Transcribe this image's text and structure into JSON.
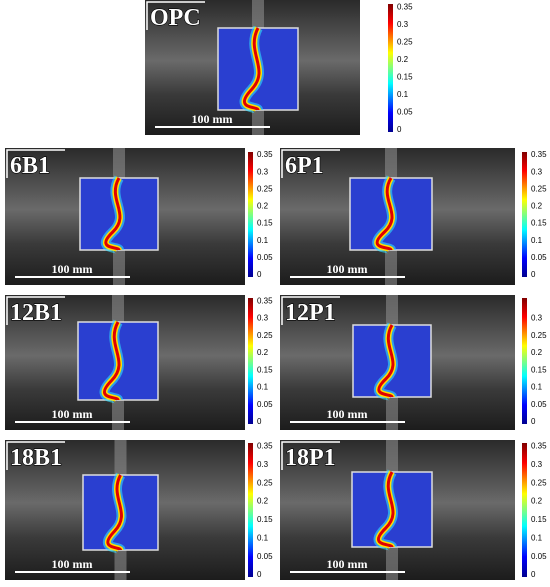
{
  "panels": [
    {
      "label": "OPC",
      "scale_bar": "100 mm",
      "colorbar_ticks": [
        0.35,
        0.3,
        0.25,
        0.2,
        0.15,
        0.1,
        0.05,
        0
      ]
    },
    {
      "label": "6B1",
      "scale_bar": "100 mm",
      "colorbar_ticks": [
        0.35,
        0.3,
        0.25,
        0.2,
        0.15,
        0.1,
        0.05,
        0
      ]
    },
    {
      "label": "6P1",
      "scale_bar": "100 mm",
      "colorbar_ticks": [
        0.35,
        0.3,
        0.25,
        0.2,
        0.15,
        0.1,
        0.05,
        0
      ]
    },
    {
      "label": "12B1",
      "scale_bar": "100 mm",
      "colorbar_ticks": [
        0.35,
        0.3,
        0.25,
        0.2,
        0.15,
        0.1,
        0.05,
        0
      ]
    },
    {
      "label": "12P1",
      "scale_bar": "100 mm",
      "colorbar_ticks": [
        0.3,
        0.25,
        0.2,
        0.15,
        0.1,
        0.05,
        0
      ]
    },
    {
      "label": "18B1",
      "scale_bar": "100 mm",
      "colorbar_ticks": [
        0.35,
        0.3,
        0.25,
        0.2,
        0.15,
        0.1,
        0.05,
        0
      ]
    },
    {
      "label": "18P1",
      "scale_bar": "100 mm",
      "colorbar_ticks": [
        0.35,
        0.3,
        0.25,
        0.2,
        0.15,
        0.1,
        0.05,
        0
      ]
    }
  ]
}
